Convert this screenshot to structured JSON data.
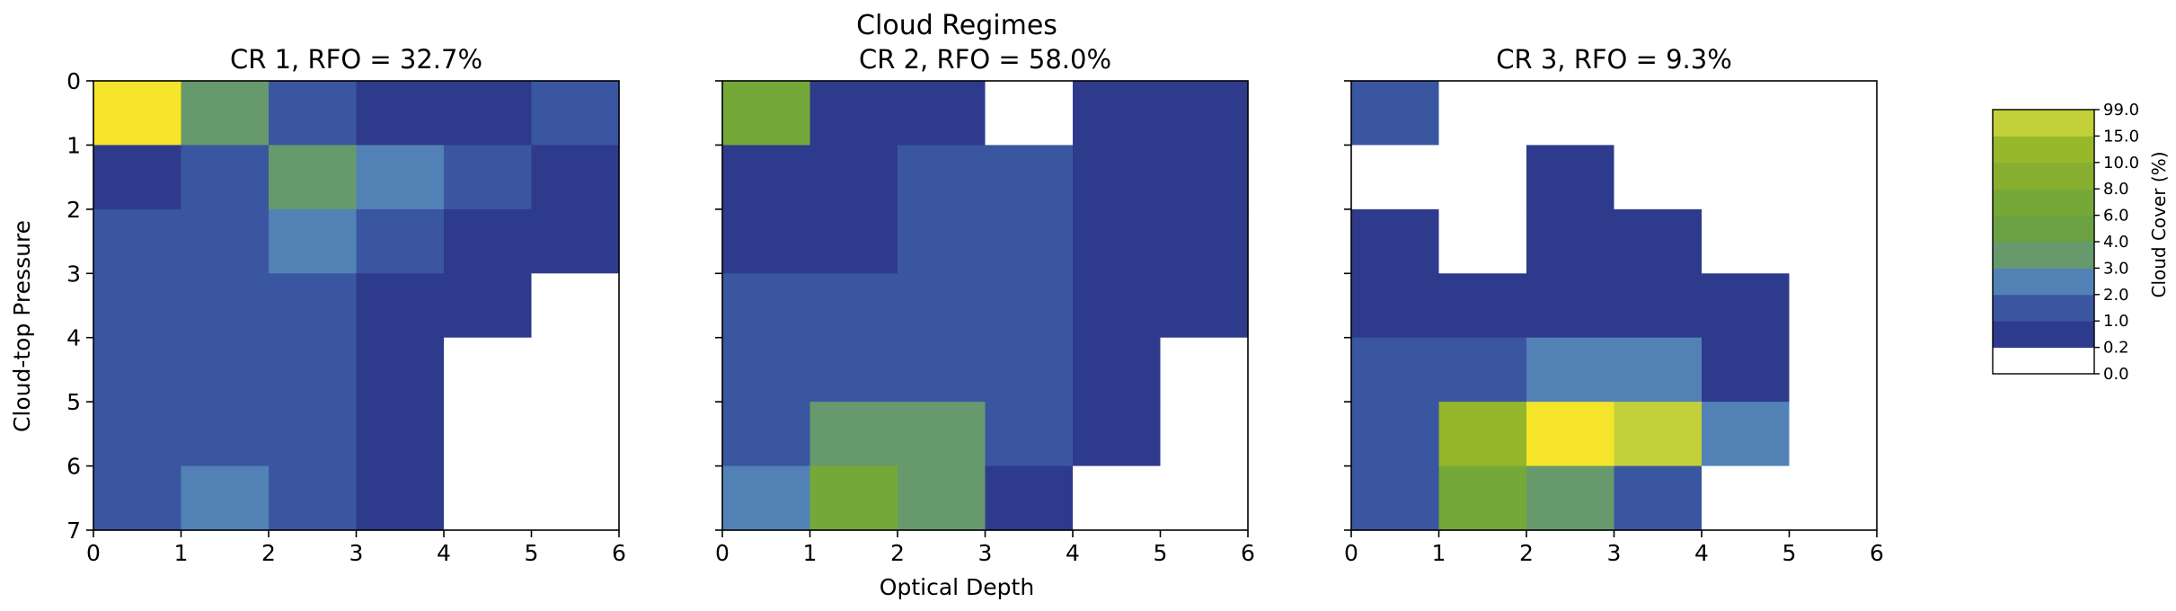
{
  "figure": {
    "title": "Cloud Regimes",
    "xlabel": "Optical Depth",
    "ylabel": "Cloud-top Pressure"
  },
  "colorbar": {
    "label": "Cloud Cover (%)",
    "boundaries": [
      "0.0",
      "0.2",
      "1.0",
      "2.0",
      "3.0",
      "4.0",
      "6.0",
      "8.0",
      "10.0",
      "15.0",
      "99.0"
    ],
    "colors": [
      "#ffffff",
      "#2e3a8c",
      "#3a56a0",
      "#5282b5",
      "#66996c",
      "#6ba143",
      "#76a838",
      "#88ae30",
      "#97b82b",
      "#c3cf38"
    ]
  },
  "colors": {
    "white": "#ffffff",
    "dark_blue": "#2e3a8c",
    "blue": "#3a56a0",
    "light_blue": "#5282b5",
    "sage": "#66996c",
    "green": "#74a838",
    "yellow_green": "#94b62b",
    "lime": "#c3cf38",
    "yellow": "#f5e429"
  },
  "chart_data": [
    {
      "type": "heatmap",
      "title": "CR 1, RFO = 32.7%",
      "x_ticks": [
        "0",
        "1",
        "2",
        "3",
        "4",
        "5",
        "6"
      ],
      "y_ticks": [
        "0",
        "1",
        "2",
        "3",
        "4",
        "5",
        "6",
        "7"
      ],
      "xlim": [
        0,
        6
      ],
      "ylim": [
        7,
        0
      ],
      "values": [
        [
          20.0,
          3.5,
          1.5,
          0.6,
          0.6,
          1.5
        ],
        [
          0.6,
          1.5,
          3.5,
          2.5,
          1.5,
          0.6
        ],
        [
          1.5,
          1.5,
          2.5,
          1.5,
          0.6,
          0.6
        ],
        [
          1.5,
          1.5,
          1.5,
          0.6,
          0.6,
          0.0
        ],
        [
          1.5,
          1.5,
          1.5,
          0.6,
          0.0,
          0.0
        ],
        [
          1.5,
          1.5,
          1.5,
          0.6,
          0.0,
          0.0
        ],
        [
          1.5,
          2.5,
          1.5,
          0.6,
          0.0,
          0.0
        ]
      ]
    },
    {
      "type": "heatmap",
      "title": "CR 2, RFO = 58.0%",
      "x_ticks": [
        "0",
        "1",
        "2",
        "3",
        "4",
        "5",
        "6"
      ],
      "y_ticks": [
        "0",
        "1",
        "2",
        "3",
        "4",
        "5",
        "6",
        "7"
      ],
      "xlim": [
        0,
        6
      ],
      "ylim": [
        7,
        0
      ],
      "values": [
        [
          5.0,
          0.6,
          0.6,
          0.0,
          0.6,
          0.6
        ],
        [
          0.6,
          0.6,
          1.5,
          1.5,
          0.6,
          0.6
        ],
        [
          0.6,
          0.6,
          1.5,
          1.5,
          0.6,
          0.6
        ],
        [
          1.5,
          1.5,
          1.5,
          1.5,
          0.6,
          0.6
        ],
        [
          1.5,
          1.5,
          1.5,
          1.5,
          0.6,
          0.0
        ],
        [
          1.5,
          3.5,
          3.5,
          1.5,
          0.6,
          0.0
        ],
        [
          2.5,
          5.0,
          3.5,
          0.6,
          0.0,
          0.0
        ]
      ]
    },
    {
      "type": "heatmap",
      "title": "CR 3, RFO = 9.3%",
      "x_ticks": [
        "0",
        "1",
        "2",
        "3",
        "4",
        "5",
        "6"
      ],
      "y_ticks": [
        "0",
        "1",
        "2",
        "3",
        "4",
        "5",
        "6",
        "7"
      ],
      "xlim": [
        0,
        6
      ],
      "ylim": [
        7,
        0
      ],
      "values": [
        [
          1.5,
          0.0,
          0.0,
          0.0,
          0.0,
          0.0
        ],
        [
          0.0,
          0.0,
          0.6,
          0.0,
          0.0,
          0.0
        ],
        [
          0.6,
          0.0,
          0.6,
          0.6,
          0.0,
          0.0
        ],
        [
          0.6,
          0.6,
          0.6,
          0.6,
          0.6,
          0.0
        ],
        [
          1.5,
          1.5,
          2.5,
          2.5,
          0.6,
          0.0
        ],
        [
          1.5,
          9.0,
          20.0,
          12.0,
          2.5,
          0.0
        ],
        [
          1.5,
          5.0,
          3.5,
          1.5,
          0.0,
          0.0
        ]
      ]
    }
  ]
}
